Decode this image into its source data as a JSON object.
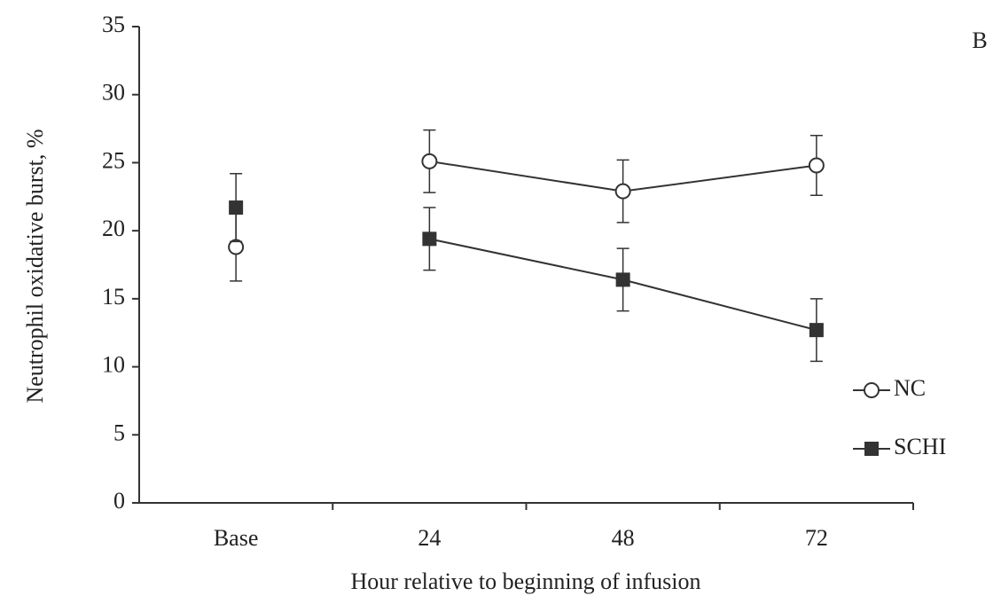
{
  "chart_data": {
    "type": "line",
    "panel_label": "B",
    "x_label": "Hour relative to beginning of infusion",
    "y_label": "Neutrophil oxidative burst, %",
    "categories": [
      "Base",
      "24",
      "48",
      "72"
    ],
    "series": [
      {
        "name": "NC",
        "color": "#333333",
        "marker": "open-circle",
        "values": [
          18.8,
          25.1,
          22.9,
          24.8
        ],
        "errors": [
          2.5,
          2.3,
          2.3,
          2.2
        ]
      },
      {
        "name": "SCHI",
        "color": "#333333",
        "marker": "filled-square",
        "values": [
          21.7,
          19.4,
          16.4,
          12.7
        ],
        "errors": [
          2.5,
          2.3,
          2.3,
          2.3
        ]
      }
    ],
    "ylim": [
      0,
      35
    ],
    "yticks": [
      0,
      5,
      10,
      15,
      20,
      25,
      30,
      35
    ],
    "grid": false,
    "legend": "right"
  }
}
